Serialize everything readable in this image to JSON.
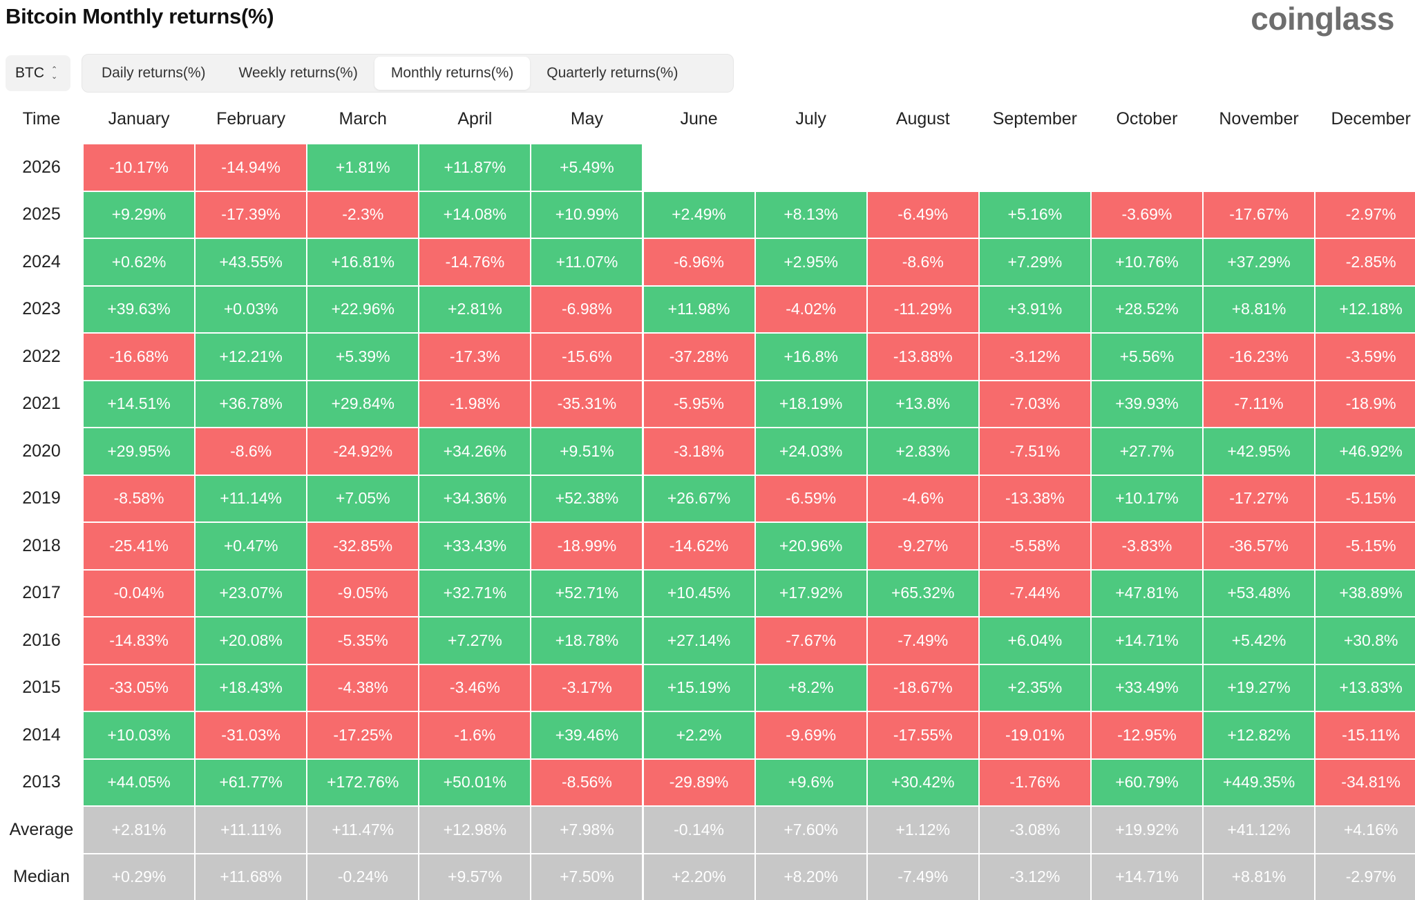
{
  "header": {
    "title": "Bitcoin Monthly returns(%)",
    "logo": "coinglass"
  },
  "asset_select": {
    "value": "BTC"
  },
  "tabs": [
    {
      "label": "Daily returns(%)",
      "active": false
    },
    {
      "label": "Weekly returns(%)",
      "active": false
    },
    {
      "label": "Monthly returns(%)",
      "active": true
    },
    {
      "label": "Quarterly returns(%)",
      "active": false
    }
  ],
  "table": {
    "time_header": "Time",
    "columns": [
      "January",
      "February",
      "March",
      "April",
      "May",
      "June",
      "July",
      "August",
      "September",
      "October",
      "November",
      "December"
    ],
    "rows": [
      {
        "year": "2026",
        "values": [
          "-10.17%",
          "-14.94%",
          "+1.81%",
          "+11.87%",
          "+5.49%",
          "",
          "",
          "",
          "",
          "",
          "",
          ""
        ]
      },
      {
        "year": "2025",
        "values": [
          "+9.29%",
          "-17.39%",
          "-2.3%",
          "+14.08%",
          "+10.99%",
          "+2.49%",
          "+8.13%",
          "-6.49%",
          "+5.16%",
          "-3.69%",
          "-17.67%",
          "-2.97%"
        ]
      },
      {
        "year": "2024",
        "values": [
          "+0.62%",
          "+43.55%",
          "+16.81%",
          "-14.76%",
          "+11.07%",
          "-6.96%",
          "+2.95%",
          "-8.6%",
          "+7.29%",
          "+10.76%",
          "+37.29%",
          "-2.85%"
        ]
      },
      {
        "year": "2023",
        "values": [
          "+39.63%",
          "+0.03%",
          "+22.96%",
          "+2.81%",
          "-6.98%",
          "+11.98%",
          "-4.02%",
          "-11.29%",
          "+3.91%",
          "+28.52%",
          "+8.81%",
          "+12.18%"
        ]
      },
      {
        "year": "2022",
        "values": [
          "-16.68%",
          "+12.21%",
          "+5.39%",
          "-17.3%",
          "-15.6%",
          "-37.28%",
          "+16.8%",
          "-13.88%",
          "-3.12%",
          "+5.56%",
          "-16.23%",
          "-3.59%"
        ]
      },
      {
        "year": "2021",
        "values": [
          "+14.51%",
          "+36.78%",
          "+29.84%",
          "-1.98%",
          "-35.31%",
          "-5.95%",
          "+18.19%",
          "+13.8%",
          "-7.03%",
          "+39.93%",
          "-7.11%",
          "-18.9%"
        ]
      },
      {
        "year": "2020",
        "values": [
          "+29.95%",
          "-8.6%",
          "-24.92%",
          "+34.26%",
          "+9.51%",
          "-3.18%",
          "+24.03%",
          "+2.83%",
          "-7.51%",
          "+27.7%",
          "+42.95%",
          "+46.92%"
        ]
      },
      {
        "year": "2019",
        "values": [
          "-8.58%",
          "+11.14%",
          "+7.05%",
          "+34.36%",
          "+52.38%",
          "+26.67%",
          "-6.59%",
          "-4.6%",
          "-13.38%",
          "+10.17%",
          "-17.27%",
          "-5.15%"
        ]
      },
      {
        "year": "2018",
        "values": [
          "-25.41%",
          "+0.47%",
          "-32.85%",
          "+33.43%",
          "-18.99%",
          "-14.62%",
          "+20.96%",
          "-9.27%",
          "-5.58%",
          "-3.83%",
          "-36.57%",
          "-5.15%"
        ]
      },
      {
        "year": "2017",
        "values": [
          "-0.04%",
          "+23.07%",
          "-9.05%",
          "+32.71%",
          "+52.71%",
          "+10.45%",
          "+17.92%",
          "+65.32%",
          "-7.44%",
          "+47.81%",
          "+53.48%",
          "+38.89%"
        ]
      },
      {
        "year": "2016",
        "values": [
          "-14.83%",
          "+20.08%",
          "-5.35%",
          "+7.27%",
          "+18.78%",
          "+27.14%",
          "-7.67%",
          "-7.49%",
          "+6.04%",
          "+14.71%",
          "+5.42%",
          "+30.8%"
        ]
      },
      {
        "year": "2015",
        "values": [
          "-33.05%",
          "+18.43%",
          "-4.38%",
          "-3.46%",
          "-3.17%",
          "+15.19%",
          "+8.2%",
          "-18.67%",
          "+2.35%",
          "+33.49%",
          "+19.27%",
          "+13.83%"
        ]
      },
      {
        "year": "2014",
        "values": [
          "+10.03%",
          "-31.03%",
          "-17.25%",
          "-1.6%",
          "+39.46%",
          "+2.2%",
          "-9.69%",
          "-17.55%",
          "-19.01%",
          "-12.95%",
          "+12.82%",
          "-15.11%"
        ]
      },
      {
        "year": "2013",
        "values": [
          "+44.05%",
          "+61.77%",
          "+172.76%",
          "+50.01%",
          "-8.56%",
          "-29.89%",
          "+9.6%",
          "+30.42%",
          "-1.76%",
          "+60.79%",
          "+449.35%",
          "-34.81%"
        ]
      }
    ],
    "stats": [
      {
        "label": "Average",
        "values": [
          "+2.81%",
          "+11.11%",
          "+11.47%",
          "+12.98%",
          "+7.98%",
          "-0.14%",
          "+7.60%",
          "+1.12%",
          "-3.08%",
          "+19.92%",
          "+41.12%",
          "+4.16%"
        ]
      },
      {
        "label": "Median",
        "values": [
          "+0.29%",
          "+11.68%",
          "-0.24%",
          "+9.57%",
          "+7.50%",
          "+2.20%",
          "+8.20%",
          "-7.49%",
          "-3.12%",
          "+14.71%",
          "+8.81%",
          "-2.97%"
        ]
      }
    ]
  },
  "colors": {
    "positive": "#4dc97f",
    "negative": "#f76b6c",
    "stat": "#c7c7c7"
  }
}
